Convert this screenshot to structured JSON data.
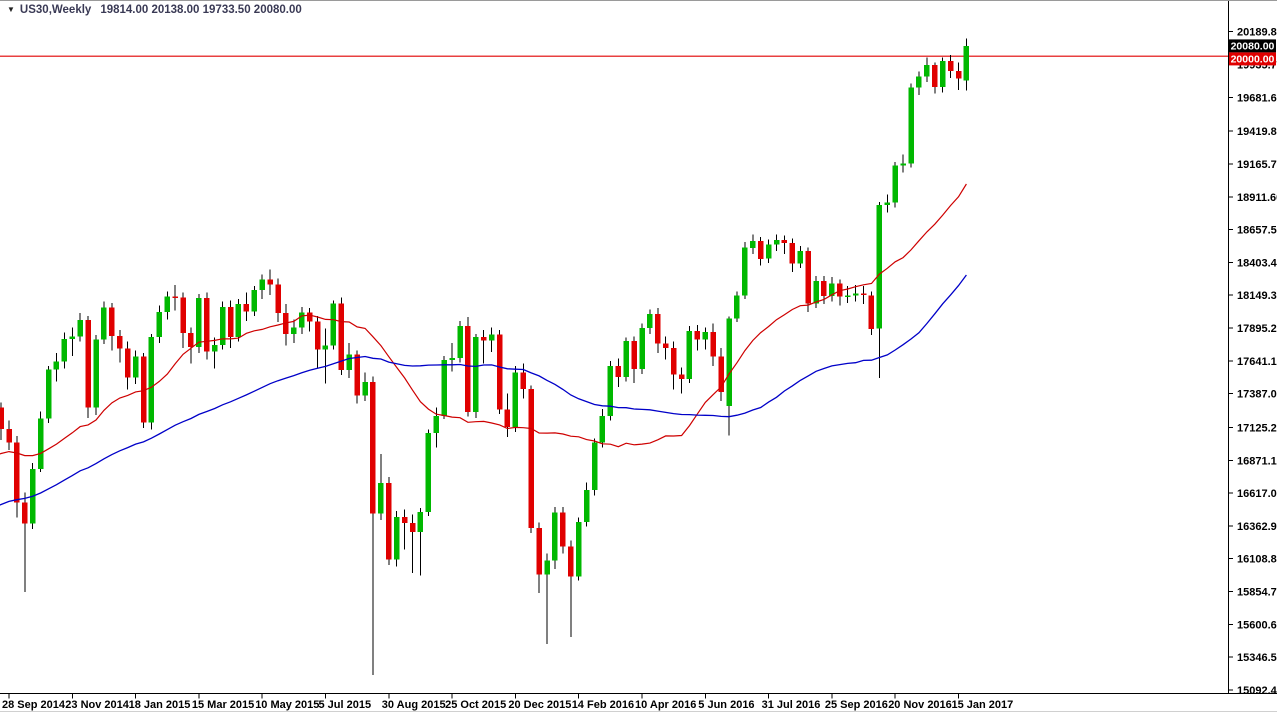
{
  "titlebar": {
    "symbol_period": "US30,Weekly",
    "ohlc_text": "19814.00 20138.00 19733.50 20080.00"
  },
  "price_labels": {
    "current": "20080.00",
    "line": "20000.00"
  },
  "colors": {
    "bull": "#00B800",
    "bear": "#E00000",
    "wick": "#000000",
    "ma_fast": "#CE0000",
    "ma_slow": "#0000C8",
    "hline": "#E00000",
    "current_box_bg": "#000000",
    "line_box_bg": "#E00000",
    "axis_line": "#000000",
    "axis_text": "#000000",
    "border_top": "#9a9a9a",
    "border_bottom": "#d0d0d0"
  },
  "chart_data": {
    "type": "candlestick",
    "symbol": "US30",
    "timeframe": "Weekly",
    "grid": "off",
    "legend": "none",
    "last_bar": {
      "open": 19814.0,
      "high": 20138.0,
      "low": 19733.5,
      "close": 20080.0
    },
    "horizontal_line_level": 20000.0,
    "ylim": [
      15092.4,
      20189.8
    ],
    "y_axis_ticks": [
      20189.8,
      19935.7,
      19681.6,
      19419.8,
      19165.7,
      18911.6,
      18657.5,
      18403.4,
      18149.3,
      17895.2,
      17641.1,
      17387.0,
      17125.2,
      16871.1,
      16617.0,
      16362.9,
      16108.8,
      15854.7,
      15600.6,
      15346.5,
      15092.4
    ],
    "x_axis_labels": [
      "28 Sep 2014",
      "23 Nov 2014",
      "18 Jan 2015",
      "15 Mar 2015",
      "10 May 2015",
      "5 Jul 2015",
      "30 Aug 2015",
      "25 Oct 2015",
      "20 Dec 2015",
      "14 Feb 2016",
      "10 Apr 2016",
      "5 Jun 2016",
      "31 Jul 2016",
      "25 Sep 2016",
      "20 Nov 2016",
      "15 Jan 2017"
    ],
    "bars_per_label": 8,
    "first_labeled_bar_index": 8,
    "ma_fast_period": 20,
    "ma_slow_period": 50,
    "ma_seed_prehistory": {
      "start": 15600,
      "end": 17050,
      "count": 50
    },
    "candles": [
      [
        17100,
        17160,
        16480,
        16554
      ],
      [
        16554,
        16720,
        16400,
        16663
      ],
      [
        16663,
        17040,
        16600,
        17001
      ],
      [
        17001,
        17150,
        16940,
        17098
      ],
      [
        17098,
        17210,
        17010,
        17137
      ],
      [
        17137,
        17190,
        16900,
        16987
      ],
      [
        16987,
        17310,
        16930,
        17280
      ],
      [
        17280,
        17320,
        17030,
        17113
      ],
      [
        17113,
        17180,
        16950,
        17010
      ],
      [
        17010,
        17060,
        16430,
        16544
      ],
      [
        16544,
        16620,
        15850,
        16380
      ],
      [
        16380,
        16850,
        16340,
        16805
      ],
      [
        16805,
        17250,
        16780,
        17195
      ],
      [
        17195,
        17600,
        17160,
        17574
      ],
      [
        17574,
        17700,
        17480,
        17635
      ],
      [
        17635,
        17860,
        17580,
        17810
      ],
      [
        17810,
        17900,
        17680,
        17828
      ],
      [
        17828,
        18010,
        17790,
        17959
      ],
      [
        17959,
        17990,
        17200,
        17281
      ],
      [
        17281,
        17840,
        17220,
        17805
      ],
      [
        17805,
        18100,
        17770,
        18054
      ],
      [
        18054,
        18090,
        17720,
        17833
      ],
      [
        17833,
        17880,
        17630,
        17737
      ],
      [
        17737,
        17790,
        17420,
        17512
      ],
      [
        17512,
        17720,
        17460,
        17673
      ],
      [
        17673,
        17700,
        17120,
        17164
      ],
      [
        17164,
        17850,
        17110,
        17824
      ],
      [
        17824,
        18070,
        17780,
        18019
      ],
      [
        18019,
        18180,
        17960,
        18140
      ],
      [
        18140,
        18230,
        18030,
        18133
      ],
      [
        18133,
        18170,
        17740,
        17857
      ],
      [
        17857,
        17900,
        17620,
        17749
      ],
      [
        17749,
        18160,
        17700,
        18128
      ],
      [
        18128,
        18170,
        17650,
        17713
      ],
      [
        17713,
        17820,
        17580,
        17763
      ],
      [
        17763,
        18100,
        17730,
        18058
      ],
      [
        18058,
        18110,
        17740,
        17826
      ],
      [
        17826,
        18120,
        17790,
        18080
      ],
      [
        18080,
        18170,
        17950,
        18024
      ],
      [
        18024,
        18220,
        17990,
        18191
      ],
      [
        18191,
        18310,
        18120,
        18272
      ],
      [
        18272,
        18350,
        18150,
        18232
      ],
      [
        18232,
        18280,
        17940,
        18011
      ],
      [
        18011,
        18080,
        17760,
        17849
      ],
      [
        17849,
        17960,
        17780,
        17899
      ],
      [
        17899,
        18060,
        17850,
        18014
      ],
      [
        18014,
        18050,
        17870,
        17947
      ],
      [
        17947,
        17990,
        17580,
        17730
      ],
      [
        17730,
        17890,
        17465,
        17760
      ],
      [
        17760,
        18110,
        17730,
        18086
      ],
      [
        18086,
        18130,
        17530,
        17569
      ],
      [
        17569,
        17780,
        17510,
        17690
      ],
      [
        17690,
        17720,
        17310,
        17373
      ],
      [
        17373,
        17550,
        17330,
        17477
      ],
      [
        17477,
        17520,
        15210,
        16460
      ],
      [
        16460,
        16920,
        16410,
        16695
      ],
      [
        16695,
        16740,
        16060,
        16102
      ],
      [
        16102,
        16480,
        16050,
        16433
      ],
      [
        16433,
        16490,
        16180,
        16385
      ],
      [
        16385,
        16450,
        16000,
        16315
      ],
      [
        16315,
        16500,
        15980,
        16472
      ],
      [
        16472,
        17110,
        16440,
        17084
      ],
      [
        17084,
        17280,
        16970,
        17215
      ],
      [
        17215,
        17680,
        17190,
        17647
      ],
      [
        17647,
        17780,
        17560,
        17663
      ],
      [
        17663,
        17950,
        17630,
        17910
      ],
      [
        17910,
        17980,
        17210,
        17245
      ],
      [
        17245,
        17850,
        17200,
        17824
      ],
      [
        17824,
        17880,
        17620,
        17798
      ],
      [
        17798,
        17900,
        17710,
        17847
      ],
      [
        17847,
        17880,
        17230,
        17265
      ],
      [
        17265,
        17390,
        17050,
        17128
      ],
      [
        17128,
        17600,
        17090,
        17552
      ],
      [
        17552,
        17620,
        17350,
        17425
      ],
      [
        17425,
        17450,
        16310,
        16346
      ],
      [
        16346,
        16390,
        15843,
        15988
      ],
      [
        15988,
        16150,
        15450,
        16094
      ],
      [
        16094,
        16510,
        16030,
        16466
      ],
      [
        16466,
        16510,
        16150,
        16205
      ],
      [
        16205,
        16250,
        15503,
        15973
      ],
      [
        15973,
        16430,
        15940,
        16392
      ],
      [
        16392,
        16700,
        16360,
        16640
      ],
      [
        16640,
        17040,
        16600,
        17007
      ],
      [
        17007,
        17270,
        16970,
        17213
      ],
      [
        17213,
        17640,
        17180,
        17602
      ],
      [
        17602,
        17660,
        17440,
        17516
      ],
      [
        17516,
        17820,
        17480,
        17793
      ],
      [
        17793,
        17830,
        17470,
        17577
      ],
      [
        17577,
        17930,
        17540,
        17897
      ],
      [
        17897,
        18040,
        17850,
        18004
      ],
      [
        18004,
        18050,
        17700,
        17774
      ],
      [
        17774,
        17830,
        17650,
        17741
      ],
      [
        17741,
        17790,
        17420,
        17535
      ],
      [
        17535,
        17590,
        17390,
        17500
      ],
      [
        17500,
        17910,
        17470,
        17873
      ],
      [
        17873,
        17920,
        17720,
        17807
      ],
      [
        17807,
        17900,
        17730,
        17865
      ],
      [
        17865,
        17930,
        17600,
        17675
      ],
      [
        17675,
        17740,
        17330,
        17400
      ],
      [
        17290,
        17985,
        17063,
        17970
      ],
      [
        17970,
        18180,
        17940,
        18147
      ],
      [
        18147,
        18560,
        18120,
        18517
      ],
      [
        18517,
        18620,
        18470,
        18571
      ],
      [
        18571,
        18600,
        18380,
        18432
      ],
      [
        18432,
        18580,
        18400,
        18543
      ],
      [
        18543,
        18620,
        18490,
        18576
      ],
      [
        18576,
        18610,
        18470,
        18553
      ],
      [
        18553,
        18590,
        18330,
        18395
      ],
      [
        18395,
        18530,
        18360,
        18492
      ],
      [
        18492,
        18520,
        18020,
        18085
      ],
      [
        18085,
        18300,
        18050,
        18261
      ],
      [
        18261,
        18300,
        18080,
        18143
      ],
      [
        18143,
        18290,
        18100,
        18240
      ],
      [
        18240,
        18270,
        18070,
        18138
      ],
      [
        18138,
        18220,
        18090,
        18146
      ],
      [
        18146,
        18230,
        18100,
        18161
      ],
      [
        18161,
        18220,
        18080,
        18149
      ],
      [
        18149,
        18180,
        17840,
        17888
      ],
      [
        17890,
        18870,
        17508,
        18848
      ],
      [
        18848,
        18930,
        18790,
        18868
      ],
      [
        18868,
        19180,
        18830,
        19152
      ],
      [
        19152,
        19240,
        19100,
        19170
      ],
      [
        19170,
        19790,
        19140,
        19757
      ],
      [
        19757,
        19880,
        19700,
        19843
      ],
      [
        19843,
        19990,
        19800,
        19933
      ],
      [
        19933,
        19950,
        19710,
        19763
      ],
      [
        19763,
        19990,
        19720,
        19964
      ],
      [
        19964,
        20010,
        19830,
        19886
      ],
      [
        19886,
        19950,
        19740,
        19827
      ],
      [
        19814,
        20138,
        19733.5,
        20080
      ]
    ]
  }
}
